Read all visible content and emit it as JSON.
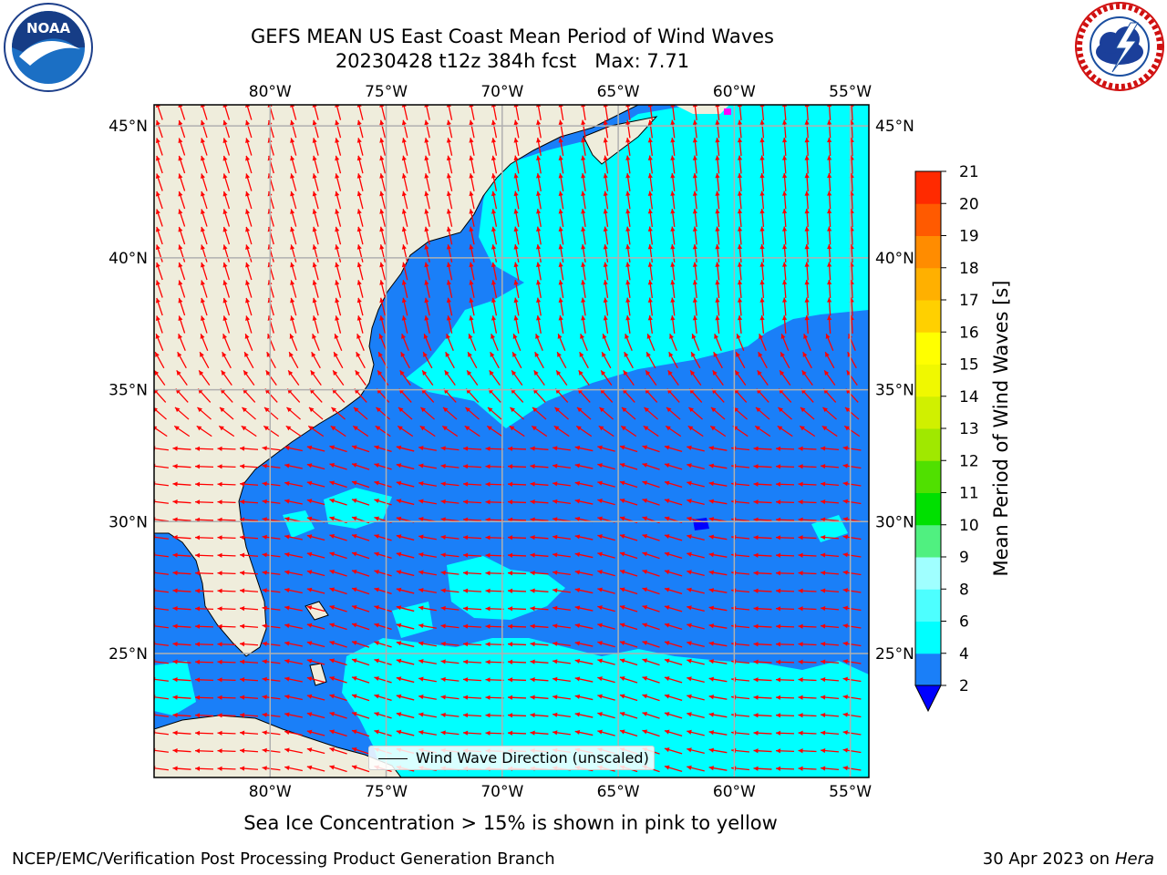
{
  "title": {
    "line1": "GEFS MEAN US East Coast Mean Period of Wind Waves",
    "line2": "20230428 t12z 384h fcst   Max: 7.71"
  },
  "map": {
    "lon_range": [
      -85,
      -54.2
    ],
    "lat_range": [
      20.3,
      45.8
    ],
    "lon_ticks": [
      {
        "value": -80,
        "label": "80°W"
      },
      {
        "value": -75,
        "label": "75°W"
      },
      {
        "value": -70,
        "label": "70°W"
      },
      {
        "value": -65,
        "label": "65°W"
      },
      {
        "value": -60,
        "label": "60°W"
      },
      {
        "value": -55,
        "label": "55°W"
      }
    ],
    "lat_ticks": [
      {
        "value": 45,
        "label": "45°N"
      },
      {
        "value": 40,
        "label": "40°N"
      },
      {
        "value": 35,
        "label": "35°N"
      },
      {
        "value": 30,
        "label": "30°N"
      },
      {
        "value": 25,
        "label": "25°N"
      }
    ],
    "gridlines": true,
    "colors": {
      "land": "#efeddc",
      "ocean_2_4": "#1a7ff8",
      "ocean_4_6": "#00ffff",
      "arrow": "#ff0000",
      "grid": "#b0b0b0"
    }
  },
  "colorbar": {
    "label": "Mean Period of Wind Waves [s]",
    "levels": [
      2,
      4,
      6,
      8,
      9,
      10,
      11,
      12,
      13,
      14,
      15,
      16,
      17,
      18,
      19,
      20,
      21
    ],
    "tick_labels": [
      "2",
      "4",
      "6",
      "8",
      "9",
      "10",
      "11",
      "12",
      "13",
      "14",
      "15",
      "16",
      "17",
      "18",
      "19",
      "20",
      "21"
    ],
    "colors": [
      "#1a7ff8",
      "#00ffff",
      "#4dffff",
      "#a0ffff",
      "#50f080",
      "#00e000",
      "#50e000",
      "#a0e800",
      "#d0f000",
      "#f0f800",
      "#ffff00",
      "#ffd000",
      "#ffb000",
      "#ff8c00",
      "#ff5a00",
      "#ff2a00",
      "#ff0000"
    ],
    "under_color": "#0000ff"
  },
  "legend": {
    "label": "Wind Wave Direction (unscaled)"
  },
  "subcaption": "Sea Ice Concentration > 15% is shown in pink to yellow",
  "footer": {
    "left": "NCEP/EMC/Verification Post Processing Product Generation Branch",
    "right_date": "30 Apr 2023 on ",
    "right_machine": "Hera"
  },
  "logos": {
    "left": "noaa-logo",
    "right": "nws-logo",
    "left_text": "NOAA"
  }
}
